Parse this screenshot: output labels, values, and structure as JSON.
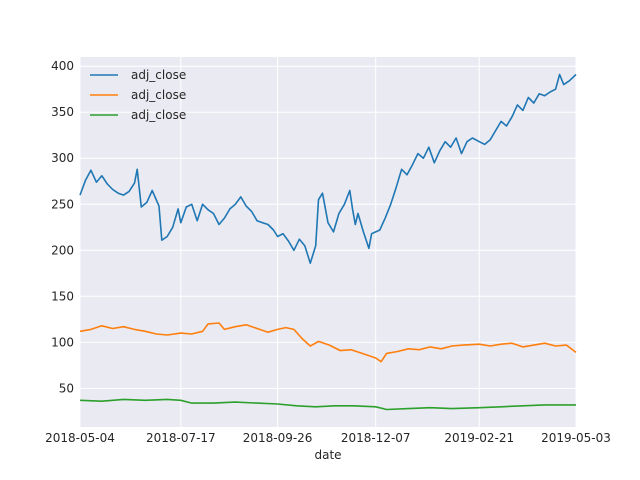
{
  "chart_data": {
    "type": "line",
    "title": "",
    "xlabel": "date",
    "ylabel": "",
    "xlim": [
      "2018-05-04",
      "2019-05-03"
    ],
    "ylim": [
      8,
      410
    ],
    "grid": true,
    "legend_position": "top-left",
    "x_ticks": [
      "2018-05-04",
      "2018-07-17",
      "2018-09-26",
      "2018-12-07",
      "2019-02-21",
      "2019-05-03"
    ],
    "y_ticks": [
      50,
      100,
      150,
      200,
      250,
      300,
      350,
      400
    ],
    "series": [
      {
        "name": "adj_close",
        "color": "#1f77b4",
        "points": [
          [
            "2018-05-04",
            260
          ],
          [
            "2018-05-08",
            276
          ],
          [
            "2018-05-12",
            287
          ],
          [
            "2018-05-16",
            274
          ],
          [
            "2018-05-20",
            281
          ],
          [
            "2018-05-24",
            272
          ],
          [
            "2018-05-28",
            266
          ],
          [
            "2018-06-01",
            262
          ],
          [
            "2018-06-05",
            260
          ],
          [
            "2018-06-09",
            264
          ],
          [
            "2018-06-13",
            273
          ],
          [
            "2018-06-15",
            288
          ],
          [
            "2018-06-18",
            247
          ],
          [
            "2018-06-22",
            252
          ],
          [
            "2018-06-26",
            265
          ],
          [
            "2018-07-01",
            248
          ],
          [
            "2018-07-03",
            211
          ],
          [
            "2018-07-07",
            215
          ],
          [
            "2018-07-11",
            225
          ],
          [
            "2018-07-15",
            245
          ],
          [
            "2018-07-17",
            230
          ],
          [
            "2018-07-21",
            247
          ],
          [
            "2018-07-25",
            250
          ],
          [
            "2018-07-29",
            232
          ],
          [
            "2018-08-02",
            250
          ],
          [
            "2018-08-06",
            244
          ],
          [
            "2018-08-10",
            240
          ],
          [
            "2018-08-14",
            228
          ],
          [
            "2018-08-18",
            235
          ],
          [
            "2018-08-22",
            245
          ],
          [
            "2018-08-26",
            250
          ],
          [
            "2018-08-30",
            258
          ],
          [
            "2018-09-03",
            248
          ],
          [
            "2018-09-07",
            242
          ],
          [
            "2018-09-11",
            232
          ],
          [
            "2018-09-15",
            230
          ],
          [
            "2018-09-19",
            228
          ],
          [
            "2018-09-23",
            222
          ],
          [
            "2018-09-26",
            215
          ],
          [
            "2018-09-30",
            218
          ],
          [
            "2018-10-04",
            210
          ],
          [
            "2018-10-08",
            200
          ],
          [
            "2018-10-12",
            212
          ],
          [
            "2018-10-16",
            205
          ],
          [
            "2018-10-20",
            186
          ],
          [
            "2018-10-24",
            205
          ],
          [
            "2018-10-26",
            255
          ],
          [
            "2018-10-29",
            262
          ],
          [
            "2018-11-02",
            230
          ],
          [
            "2018-11-06",
            220
          ],
          [
            "2018-11-10",
            240
          ],
          [
            "2018-11-14",
            250
          ],
          [
            "2018-11-18",
            265
          ],
          [
            "2018-11-20",
            245
          ],
          [
            "2018-11-22",
            228
          ],
          [
            "2018-11-24",
            240
          ],
          [
            "2018-11-28",
            220
          ],
          [
            "2018-12-02",
            202
          ],
          [
            "2018-12-04",
            218
          ],
          [
            "2018-12-07",
            220
          ],
          [
            "2018-12-10",
            222
          ],
          [
            "2018-12-14",
            235
          ],
          [
            "2018-12-18",
            250
          ],
          [
            "2018-12-22",
            268
          ],
          [
            "2018-12-26",
            288
          ],
          [
            "2018-12-30",
            282
          ],
          [
            "2019-01-03",
            293
          ],
          [
            "2019-01-07",
            305
          ],
          [
            "2019-01-11",
            300
          ],
          [
            "2019-01-15",
            312
          ],
          [
            "2019-01-19",
            295
          ],
          [
            "2019-01-23",
            308
          ],
          [
            "2019-01-27",
            318
          ],
          [
            "2019-01-31",
            312
          ],
          [
            "2019-02-04",
            322
          ],
          [
            "2019-02-08",
            305
          ],
          [
            "2019-02-12",
            318
          ],
          [
            "2019-02-16",
            322
          ],
          [
            "2019-02-21",
            318
          ],
          [
            "2019-02-25",
            315
          ],
          [
            "2019-03-01",
            320
          ],
          [
            "2019-03-05",
            330
          ],
          [
            "2019-03-09",
            340
          ],
          [
            "2019-03-13",
            335
          ],
          [
            "2019-03-17",
            345
          ],
          [
            "2019-03-21",
            358
          ],
          [
            "2019-03-25",
            352
          ],
          [
            "2019-03-29",
            366
          ],
          [
            "2019-04-02",
            360
          ],
          [
            "2019-04-06",
            370
          ],
          [
            "2019-04-10",
            368
          ],
          [
            "2019-04-14",
            372
          ],
          [
            "2019-04-18",
            375
          ],
          [
            "2019-04-21",
            391
          ],
          [
            "2019-04-24",
            380
          ],
          [
            "2019-04-28",
            384
          ],
          [
            "2019-05-03",
            391
          ]
        ]
      },
      {
        "name": "adj_close",
        "color": "#ff7f0e",
        "points": [
          [
            "2018-05-04",
            112
          ],
          [
            "2018-05-12",
            114
          ],
          [
            "2018-05-20",
            118
          ],
          [
            "2018-05-28",
            115
          ],
          [
            "2018-06-05",
            117
          ],
          [
            "2018-06-13",
            114
          ],
          [
            "2018-06-21",
            112
          ],
          [
            "2018-06-29",
            109
          ],
          [
            "2018-07-07",
            108
          ],
          [
            "2018-07-17",
            110
          ],
          [
            "2018-07-25",
            109
          ],
          [
            "2018-08-02",
            112
          ],
          [
            "2018-08-06",
            120
          ],
          [
            "2018-08-14",
            121
          ],
          [
            "2018-08-18",
            114
          ],
          [
            "2018-08-26",
            117
          ],
          [
            "2018-09-03",
            119
          ],
          [
            "2018-09-11",
            115
          ],
          [
            "2018-09-19",
            111
          ],
          [
            "2018-09-26",
            114
          ],
          [
            "2018-10-02",
            116
          ],
          [
            "2018-10-08",
            114
          ],
          [
            "2018-10-14",
            104
          ],
          [
            "2018-10-20",
            96
          ],
          [
            "2018-10-26",
            101
          ],
          [
            "2018-11-03",
            97
          ],
          [
            "2018-11-11",
            91
          ],
          [
            "2018-11-19",
            92
          ],
          [
            "2018-11-27",
            88
          ],
          [
            "2018-12-03",
            85
          ],
          [
            "2018-12-07",
            83
          ],
          [
            "2018-12-11",
            79
          ],
          [
            "2018-12-15",
            88
          ],
          [
            "2018-12-23",
            90
          ],
          [
            "2018-12-31",
            93
          ],
          [
            "2019-01-08",
            92
          ],
          [
            "2019-01-16",
            95
          ],
          [
            "2019-01-24",
            93
          ],
          [
            "2019-02-01",
            96
          ],
          [
            "2019-02-09",
            97
          ],
          [
            "2019-02-21",
            98
          ],
          [
            "2019-03-01",
            96
          ],
          [
            "2019-03-09",
            98
          ],
          [
            "2019-03-17",
            99
          ],
          [
            "2019-03-25",
            95
          ],
          [
            "2019-04-02",
            97
          ],
          [
            "2019-04-10",
            99
          ],
          [
            "2019-04-18",
            96
          ],
          [
            "2019-04-26",
            97
          ],
          [
            "2019-05-03",
            89
          ]
        ]
      },
      {
        "name": "adj_close",
        "color": "#2ca02c",
        "points": [
          [
            "2018-05-04",
            37
          ],
          [
            "2018-05-20",
            36
          ],
          [
            "2018-06-05",
            38
          ],
          [
            "2018-06-21",
            37
          ],
          [
            "2018-07-07",
            38
          ],
          [
            "2018-07-17",
            37
          ],
          [
            "2018-07-25",
            34
          ],
          [
            "2018-08-10",
            34
          ],
          [
            "2018-08-26",
            35
          ],
          [
            "2018-09-11",
            34
          ],
          [
            "2018-09-26",
            33
          ],
          [
            "2018-10-10",
            31
          ],
          [
            "2018-10-24",
            30
          ],
          [
            "2018-11-07",
            31
          ],
          [
            "2018-11-21",
            31
          ],
          [
            "2018-12-07",
            30
          ],
          [
            "2018-12-15",
            27
          ],
          [
            "2018-12-31",
            28
          ],
          [
            "2019-01-16",
            29
          ],
          [
            "2019-02-01",
            28
          ],
          [
            "2019-02-21",
            29
          ],
          [
            "2019-03-09",
            30
          ],
          [
            "2019-03-25",
            31
          ],
          [
            "2019-04-10",
            32
          ],
          [
            "2019-04-26",
            32
          ],
          [
            "2019-05-03",
            32
          ]
        ]
      }
    ]
  }
}
